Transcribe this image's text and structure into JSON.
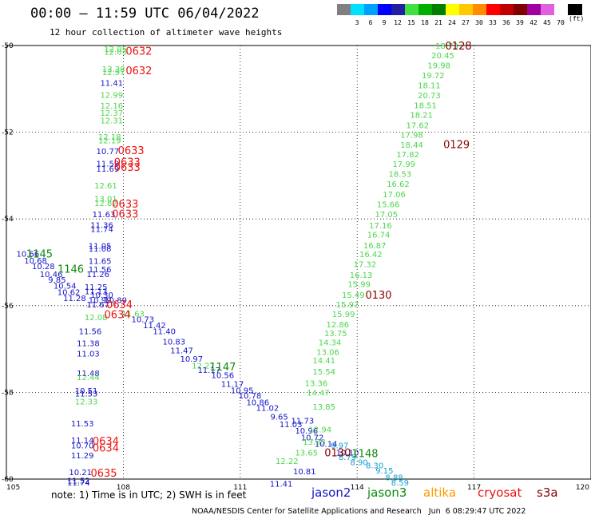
{
  "header": {
    "title": "00:00 – 11:59 UTC 06/04/2022",
    "subtitle": "12 hour collection of altimeter wave heights"
  },
  "legend": {
    "unit": "(ft)",
    "items": [
      {
        "color": "#808080",
        "label": ""
      },
      {
        "color": "#00e0ff",
        "label": "3"
      },
      {
        "color": "#00a0ff",
        "label": "6"
      },
      {
        "color": "#0000ff",
        "label": "9"
      },
      {
        "color": "#2020a0",
        "label": "12"
      },
      {
        "color": "#40e040",
        "label": "15"
      },
      {
        "color": "#00b000",
        "label": "18"
      },
      {
        "color": "#008000",
        "label": "21"
      },
      {
        "color": "#ffff00",
        "label": "24"
      },
      {
        "color": "#ffc800",
        "label": "27"
      },
      {
        "color": "#ff8c00",
        "label": "30"
      },
      {
        "color": "#ff0000",
        "label": "33"
      },
      {
        "color": "#c00000",
        "label": "36"
      },
      {
        "color": "#800000",
        "label": "39"
      },
      {
        "color": "#a000a0",
        "label": "42"
      },
      {
        "color": "#e060e0",
        "label": "45"
      },
      {
        "color": "#ffffff",
        "label": "70"
      },
      {
        "color": "#000000",
        "label": ""
      }
    ]
  },
  "chart_data": {
    "type": "scatter",
    "title": "00:00 – 11:59 UTC 06/04/2022",
    "subtitle": "12 hour collection of altimeter wave heights",
    "xlim": [
      105,
      120
    ],
    "ylim": [
      -60,
      -50
    ],
    "x_ticks": [
      "105",
      "108",
      "111",
      "114",
      "117",
      "120"
    ],
    "y_ticks": [
      "-50",
      "-52",
      "-54",
      "-56",
      "-58",
      "-60"
    ],
    "grid": true,
    "colors": {
      "lightgreen": "#4cd64c",
      "blue": "#1414c8",
      "darkblue": "#1a1a80",
      "green": "#0a8a0a",
      "red": "#ee1111",
      "maroon": "#8a0000",
      "cyan": "#14a0d2"
    },
    "points": [
      {
        "x": 107.8,
        "y": -50.07,
        "v": "12.05",
        "c": "lightgreen"
      },
      {
        "x": 107.8,
        "y": -50.14,
        "v": "12.03",
        "c": "lightgreen"
      },
      {
        "x": 107.75,
        "y": -50.53,
        "v": "13.38",
        "c": "lightgreen"
      },
      {
        "x": 107.75,
        "y": -50.61,
        "v": "12.97",
        "c": "lightgreen"
      },
      {
        "x": 107.7,
        "y": -50.86,
        "v": "11.41",
        "c": "blue"
      },
      {
        "x": 107.7,
        "y": -51.13,
        "v": "12.99",
        "c": "lightgreen"
      },
      {
        "x": 107.7,
        "y": -51.38,
        "v": "12.16",
        "c": "lightgreen"
      },
      {
        "x": 107.7,
        "y": -51.55,
        "v": "12.37",
        "c": "lightgreen"
      },
      {
        "x": 107.7,
        "y": -51.72,
        "v": "12.31",
        "c": "lightgreen"
      },
      {
        "x": 107.65,
        "y": -52.1,
        "v": "12.18",
        "c": "lightgreen"
      },
      {
        "x": 107.65,
        "y": -52.18,
        "v": "12.19",
        "c": "lightgreen"
      },
      {
        "x": 107.6,
        "y": -52.43,
        "v": "10.77",
        "c": "blue"
      },
      {
        "x": 107.6,
        "y": -52.72,
        "v": "11.59",
        "c": "blue"
      },
      {
        "x": 107.6,
        "y": -52.84,
        "v": "11.69",
        "c": "blue"
      },
      {
        "x": 107.55,
        "y": -53.22,
        "v": "12.61",
        "c": "lightgreen"
      },
      {
        "x": 107.55,
        "y": -53.53,
        "v": "13.01",
        "c": "lightgreen"
      },
      {
        "x": 107.55,
        "y": -53.63,
        "v": "12.82",
        "c": "lightgreen"
      },
      {
        "x": 107.5,
        "y": -53.89,
        "v": "11.63",
        "c": "blue"
      },
      {
        "x": 107.45,
        "y": -54.13,
        "v": "11.36",
        "c": "blue"
      },
      {
        "x": 107.45,
        "y": -54.23,
        "v": "11.74",
        "c": "blue"
      },
      {
        "x": 107.4,
        "y": -54.61,
        "v": "11.05",
        "c": "blue"
      },
      {
        "x": 107.4,
        "y": -54.68,
        "v": "11.08",
        "c": "blue"
      },
      {
        "x": 107.4,
        "y": -54.96,
        "v": "11.65",
        "c": "blue"
      },
      {
        "x": 107.4,
        "y": -55.16,
        "v": "11.56",
        "c": "blue"
      },
      {
        "x": 107.35,
        "y": -55.27,
        "v": "11.26",
        "c": "blue"
      },
      {
        "x": 107.3,
        "y": -55.56,
        "v": "11.25",
        "c": "blue"
      },
      {
        "x": 107.3,
        "y": -55.66,
        "v": "11.13",
        "c": "blue"
      },
      {
        "x": 107.45,
        "y": -55.75,
        "v": "10.30",
        "c": "blue"
      },
      {
        "x": 107.4,
        "y": -55.87,
        "v": "10.99",
        "c": "blue"
      },
      {
        "x": 107.8,
        "y": -55.87,
        "v": "10.89",
        "c": "blue"
      },
      {
        "x": 107.35,
        "y": -55.97,
        "v": "11.67",
        "c": "blue"
      },
      {
        "x": 107.3,
        "y": -56.26,
        "v": "12.08",
        "c": "lightgreen"
      },
      {
        "x": 107.15,
        "y": -56.58,
        "v": "11.56",
        "c": "blue"
      },
      {
        "x": 107.1,
        "y": -56.86,
        "v": "11.38",
        "c": "blue"
      },
      {
        "x": 107.1,
        "y": -57.1,
        "v": "11.03",
        "c": "blue"
      },
      {
        "x": 107.1,
        "y": -57.55,
        "v": "11.48",
        "c": "blue"
      },
      {
        "x": 107.1,
        "y": -57.64,
        "v": "12.44",
        "c": "lightgreen"
      },
      {
        "x": 107.05,
        "y": -57.96,
        "v": "10.51",
        "c": "blue"
      },
      {
        "x": 107.05,
        "y": -58.02,
        "v": "11.53",
        "c": "blue"
      },
      {
        "x": 107.05,
        "y": -58.2,
        "v": "12.33",
        "c": "lightgreen"
      },
      {
        "x": 106.95,
        "y": -58.71,
        "v": "11.53",
        "c": "blue"
      },
      {
        "x": 106.95,
        "y": -59.1,
        "v": "11.14",
        "c": "blue"
      },
      {
        "x": 106.95,
        "y": -59.22,
        "v": "10.70",
        "c": "blue"
      },
      {
        "x": 106.95,
        "y": -59.45,
        "v": "11.29",
        "c": "blue"
      },
      {
        "x": 106.9,
        "y": -59.83,
        "v": "10.21",
        "c": "blue"
      },
      {
        "x": 106.85,
        "y": -60.03,
        "v": "11.52",
        "c": "blue"
      },
      {
        "x": 106.85,
        "y": -60.07,
        "v": "11.74",
        "c": "blue"
      },
      {
        "x": 105.55,
        "y": -54.8,
        "v": "10.66",
        "c": "blue"
      },
      {
        "x": 105.75,
        "y": -54.95,
        "v": "10.68",
        "c": "blue"
      },
      {
        "x": 105.95,
        "y": -55.08,
        "v": "10.28",
        "c": "blue"
      },
      {
        "x": 106.15,
        "y": -55.27,
        "v": "10.46",
        "c": "blue"
      },
      {
        "x": 106.3,
        "y": -55.4,
        "v": "9.85",
        "c": "blue"
      },
      {
        "x": 106.5,
        "y": -55.53,
        "v": "10.54",
        "c": "blue"
      },
      {
        "x": 106.6,
        "y": -55.68,
        "v": "10.62",
        "c": "blue"
      },
      {
        "x": 106.75,
        "y": -55.82,
        "v": "11.28",
        "c": "blue"
      },
      {
        "x": 108.25,
        "y": -56.18,
        "v": "11.63",
        "c": "lightgreen"
      },
      {
        "x": 108.5,
        "y": -56.31,
        "v": "10.73",
        "c": "blue"
      },
      {
        "x": 108.8,
        "y": -56.45,
        "v": "11.42",
        "c": "blue"
      },
      {
        "x": 109.05,
        "y": -56.58,
        "v": "11.40",
        "c": "blue"
      },
      {
        "x": 109.3,
        "y": -56.82,
        "v": "10.83",
        "c": "blue"
      },
      {
        "x": 109.5,
        "y": -57.03,
        "v": "11.47",
        "c": "blue"
      },
      {
        "x": 109.75,
        "y": -57.22,
        "v": "10.97",
        "c": "blue"
      },
      {
        "x": 110.05,
        "y": -57.38,
        "v": "12.27",
        "c": "lightgreen"
      },
      {
        "x": 110.2,
        "y": -57.48,
        "v": "11.17",
        "c": "blue"
      },
      {
        "x": 110.55,
        "y": -57.6,
        "v": "10.56",
        "c": "blue"
      },
      {
        "x": 110.8,
        "y": -57.8,
        "v": "11.17",
        "c": "blue"
      },
      {
        "x": 111.05,
        "y": -57.95,
        "v": "10.95",
        "c": "blue"
      },
      {
        "x": 111.25,
        "y": -58.07,
        "v": "10.78",
        "c": "blue"
      },
      {
        "x": 111.45,
        "y": -58.22,
        "v": "10.86",
        "c": "blue"
      },
      {
        "x": 111.7,
        "y": -58.35,
        "v": "11.02",
        "c": "blue"
      },
      {
        "x": 112.0,
        "y": -58.55,
        "v": "9.65",
        "c": "blue"
      },
      {
        "x": 112.6,
        "y": -58.65,
        "v": "11.73",
        "c": "blue"
      },
      {
        "x": 112.3,
        "y": -58.73,
        "v": "11.03",
        "c": "blue"
      },
      {
        "x": 112.7,
        "y": -58.88,
        "v": "10.96",
        "c": "blue"
      },
      {
        "x": 112.85,
        "y": -59.03,
        "v": "10.72",
        "c": "blue"
      },
      {
        "x": 113.2,
        "y": -59.18,
        "v": "10.14",
        "c": "blue"
      },
      {
        "x": 112.65,
        "y": -59.82,
        "v": "10.81",
        "c": "blue"
      },
      {
        "x": 112.05,
        "y": -60.1,
        "v": "11.41",
        "c": "blue"
      },
      {
        "x": 113.75,
        "y": -59.38,
        "v": "10.10",
        "c": "blue"
      },
      {
        "x": 113.55,
        "y": -59.22,
        "v": "9.97",
        "c": "cyan"
      },
      {
        "x": 113.75,
        "y": -59.48,
        "v": "8.79",
        "c": "cyan"
      },
      {
        "x": 114.05,
        "y": -59.6,
        "v": "8.90",
        "c": "cyan"
      },
      {
        "x": 114.45,
        "y": -59.68,
        "v": "8.30",
        "c": "cyan"
      },
      {
        "x": 114.7,
        "y": -59.8,
        "v": "9.15",
        "c": "cyan"
      },
      {
        "x": 114.95,
        "y": -59.95,
        "v": "8.88",
        "c": "cyan"
      },
      {
        "x": 115.1,
        "y": -60.07,
        "v": "8.59",
        "c": "cyan"
      },
      {
        "x": 113.05,
        "y": -58.85,
        "v": "12.94",
        "c": "lightgreen"
      },
      {
        "x": 112.9,
        "y": -59.13,
        "v": "13.33",
        "c": "lightgreen"
      },
      {
        "x": 112.7,
        "y": -59.38,
        "v": "13.65",
        "c": "lightgreen"
      },
      {
        "x": 112.2,
        "y": -59.58,
        "v": "12.22",
        "c": "lightgreen"
      },
      {
        "x": 113.15,
        "y": -58.32,
        "v": "13.85",
        "c": "lightgreen"
      },
      {
        "x": 113.0,
        "y": -58.0,
        "v": "14.47",
        "c": "lightgreen"
      },
      {
        "x": 112.95,
        "y": -57.78,
        "v": "13.36",
        "c": "lightgreen"
      },
      {
        "x": 113.15,
        "y": -57.51,
        "v": "15.54",
        "c": "lightgreen"
      },
      {
        "x": 113.15,
        "y": -57.26,
        "v": "14.41",
        "c": "lightgreen"
      },
      {
        "x": 113.25,
        "y": -57.06,
        "v": "13.06",
        "c": "lightgreen"
      },
      {
        "x": 113.3,
        "y": -56.84,
        "v": "14.34",
        "c": "lightgreen"
      },
      {
        "x": 113.45,
        "y": -56.63,
        "v": "13.75",
        "c": "lightgreen"
      },
      {
        "x": 113.5,
        "y": -56.43,
        "v": "12.86",
        "c": "lightgreen"
      },
      {
        "x": 113.65,
        "y": -56.19,
        "v": "15.99",
        "c": "lightgreen"
      },
      {
        "x": 113.75,
        "y": -55.97,
        "v": "15.97",
        "c": "lightgreen"
      },
      {
        "x": 113.9,
        "y": -55.75,
        "v": "15.49",
        "c": "lightgreen"
      },
      {
        "x": 114.05,
        "y": -55.5,
        "v": "15.99",
        "c": "lightgreen"
      },
      {
        "x": 114.1,
        "y": -55.29,
        "v": "16.13",
        "c": "lightgreen"
      },
      {
        "x": 114.2,
        "y": -55.04,
        "v": "17.32",
        "c": "lightgreen"
      },
      {
        "x": 114.35,
        "y": -54.81,
        "v": "16.42",
        "c": "lightgreen"
      },
      {
        "x": 114.45,
        "y": -54.6,
        "v": "16.87",
        "c": "lightgreen"
      },
      {
        "x": 114.55,
        "y": -54.36,
        "v": "16.74",
        "c": "lightgreen"
      },
      {
        "x": 114.6,
        "y": -54.14,
        "v": "17.16",
        "c": "lightgreen"
      },
      {
        "x": 114.75,
        "y": -53.89,
        "v": "17.05",
        "c": "lightgreen"
      },
      {
        "x": 114.8,
        "y": -53.66,
        "v": "15.66",
        "c": "lightgreen"
      },
      {
        "x": 114.95,
        "y": -53.43,
        "v": "17.06",
        "c": "lightgreen"
      },
      {
        "x": 115.05,
        "y": -53.19,
        "v": "16.62",
        "c": "lightgreen"
      },
      {
        "x": 115.1,
        "y": -52.96,
        "v": "18.53",
        "c": "lightgreen"
      },
      {
        "x": 115.2,
        "y": -52.73,
        "v": "17.99",
        "c": "lightgreen"
      },
      {
        "x": 115.3,
        "y": -52.5,
        "v": "17.82",
        "c": "lightgreen"
      },
      {
        "x": 115.4,
        "y": -52.28,
        "v": "18.44",
        "c": "lightgreen"
      },
      {
        "x": 115.4,
        "y": -52.05,
        "v": "17.98",
        "c": "lightgreen"
      },
      {
        "x": 115.55,
        "y": -51.83,
        "v": "17.62",
        "c": "lightgreen"
      },
      {
        "x": 115.65,
        "y": -51.59,
        "v": "18.21",
        "c": "lightgreen"
      },
      {
        "x": 115.75,
        "y": -51.37,
        "v": "18.51",
        "c": "lightgreen"
      },
      {
        "x": 115.85,
        "y": -51.14,
        "v": "20.73",
        "c": "lightgreen"
      },
      {
        "x": 115.85,
        "y": -50.91,
        "v": "18.11",
        "c": "lightgreen"
      },
      {
        "x": 115.95,
        "y": -50.68,
        "v": "19.72",
        "c": "lightgreen"
      },
      {
        "x": 116.1,
        "y": -50.45,
        "v": "19.98",
        "c": "lightgreen"
      },
      {
        "x": 116.2,
        "y": -50.22,
        "v": "20.45",
        "c": "lightgreen"
      },
      {
        "x": 116.3,
        "y": -50.0,
        "v": "18.73",
        "c": "lightgreen"
      }
    ],
    "time_labels": [
      {
        "x": 108.4,
        "y": -50.12,
        "t": "0632",
        "c": "red"
      },
      {
        "x": 108.4,
        "y": -50.57,
        "t": "0632",
        "c": "red"
      },
      {
        "x": 108.2,
        "y": -52.41,
        "t": "0633",
        "c": "red"
      },
      {
        "x": 108.1,
        "y": -52.68,
        "t": "0633",
        "c": "red"
      },
      {
        "x": 108.1,
        "y": -52.8,
        "t": "0633",
        "c": "red"
      },
      {
        "x": 108.05,
        "y": -53.65,
        "t": "0633",
        "c": "red"
      },
      {
        "x": 108.05,
        "y": -53.88,
        "t": "0633",
        "c": "red"
      },
      {
        "x": 107.9,
        "y": -55.97,
        "t": "0634",
        "c": "red"
      },
      {
        "x": 107.85,
        "y": -56.2,
        "t": "0634",
        "c": "red"
      },
      {
        "x": 107.55,
        "y": -59.12,
        "t": "0634",
        "c": "red"
      },
      {
        "x": 107.55,
        "y": -59.27,
        "t": "0634",
        "c": "red"
      },
      {
        "x": 107.5,
        "y": -59.85,
        "t": "0635",
        "c": "red"
      },
      {
        "x": 105.85,
        "y": -54.8,
        "t": "1145",
        "c": "green"
      },
      {
        "x": 106.65,
        "y": -55.15,
        "t": "1146",
        "c": "green"
      },
      {
        "x": 110.55,
        "y": -57.4,
        "t": "1147",
        "c": "green"
      },
      {
        "x": 114.2,
        "y": -59.4,
        "t": "1148",
        "c": "green"
      },
      {
        "x": 116.6,
        "y": -50.0,
        "t": "0128",
        "c": "maroon"
      },
      {
        "x": 116.55,
        "y": -52.27,
        "t": "0129",
        "c": "maroon"
      },
      {
        "x": 114.55,
        "y": -55.75,
        "t": "0130",
        "c": "maroon"
      },
      {
        "x": 113.5,
        "y": -59.38,
        "t": "0130",
        "c": "maroon"
      }
    ]
  },
  "footer": {
    "note": "note: 1) Time is in UTC; 2) SWH is in feet",
    "satellites": [
      {
        "name": "jason2",
        "color": "#1414c8"
      },
      {
        "name": "jason3",
        "color": "#0a8a0a"
      },
      {
        "name": "altika",
        "color": "#ff9a00"
      },
      {
        "name": "cryosat",
        "color": "#ee1111"
      },
      {
        "name": "s3a",
        "color": "#8a0000"
      }
    ],
    "credit": "NOAA/NESDIS Center for Satellite Applications and Research   Jun  6 08:29:47 UTC 2022"
  }
}
